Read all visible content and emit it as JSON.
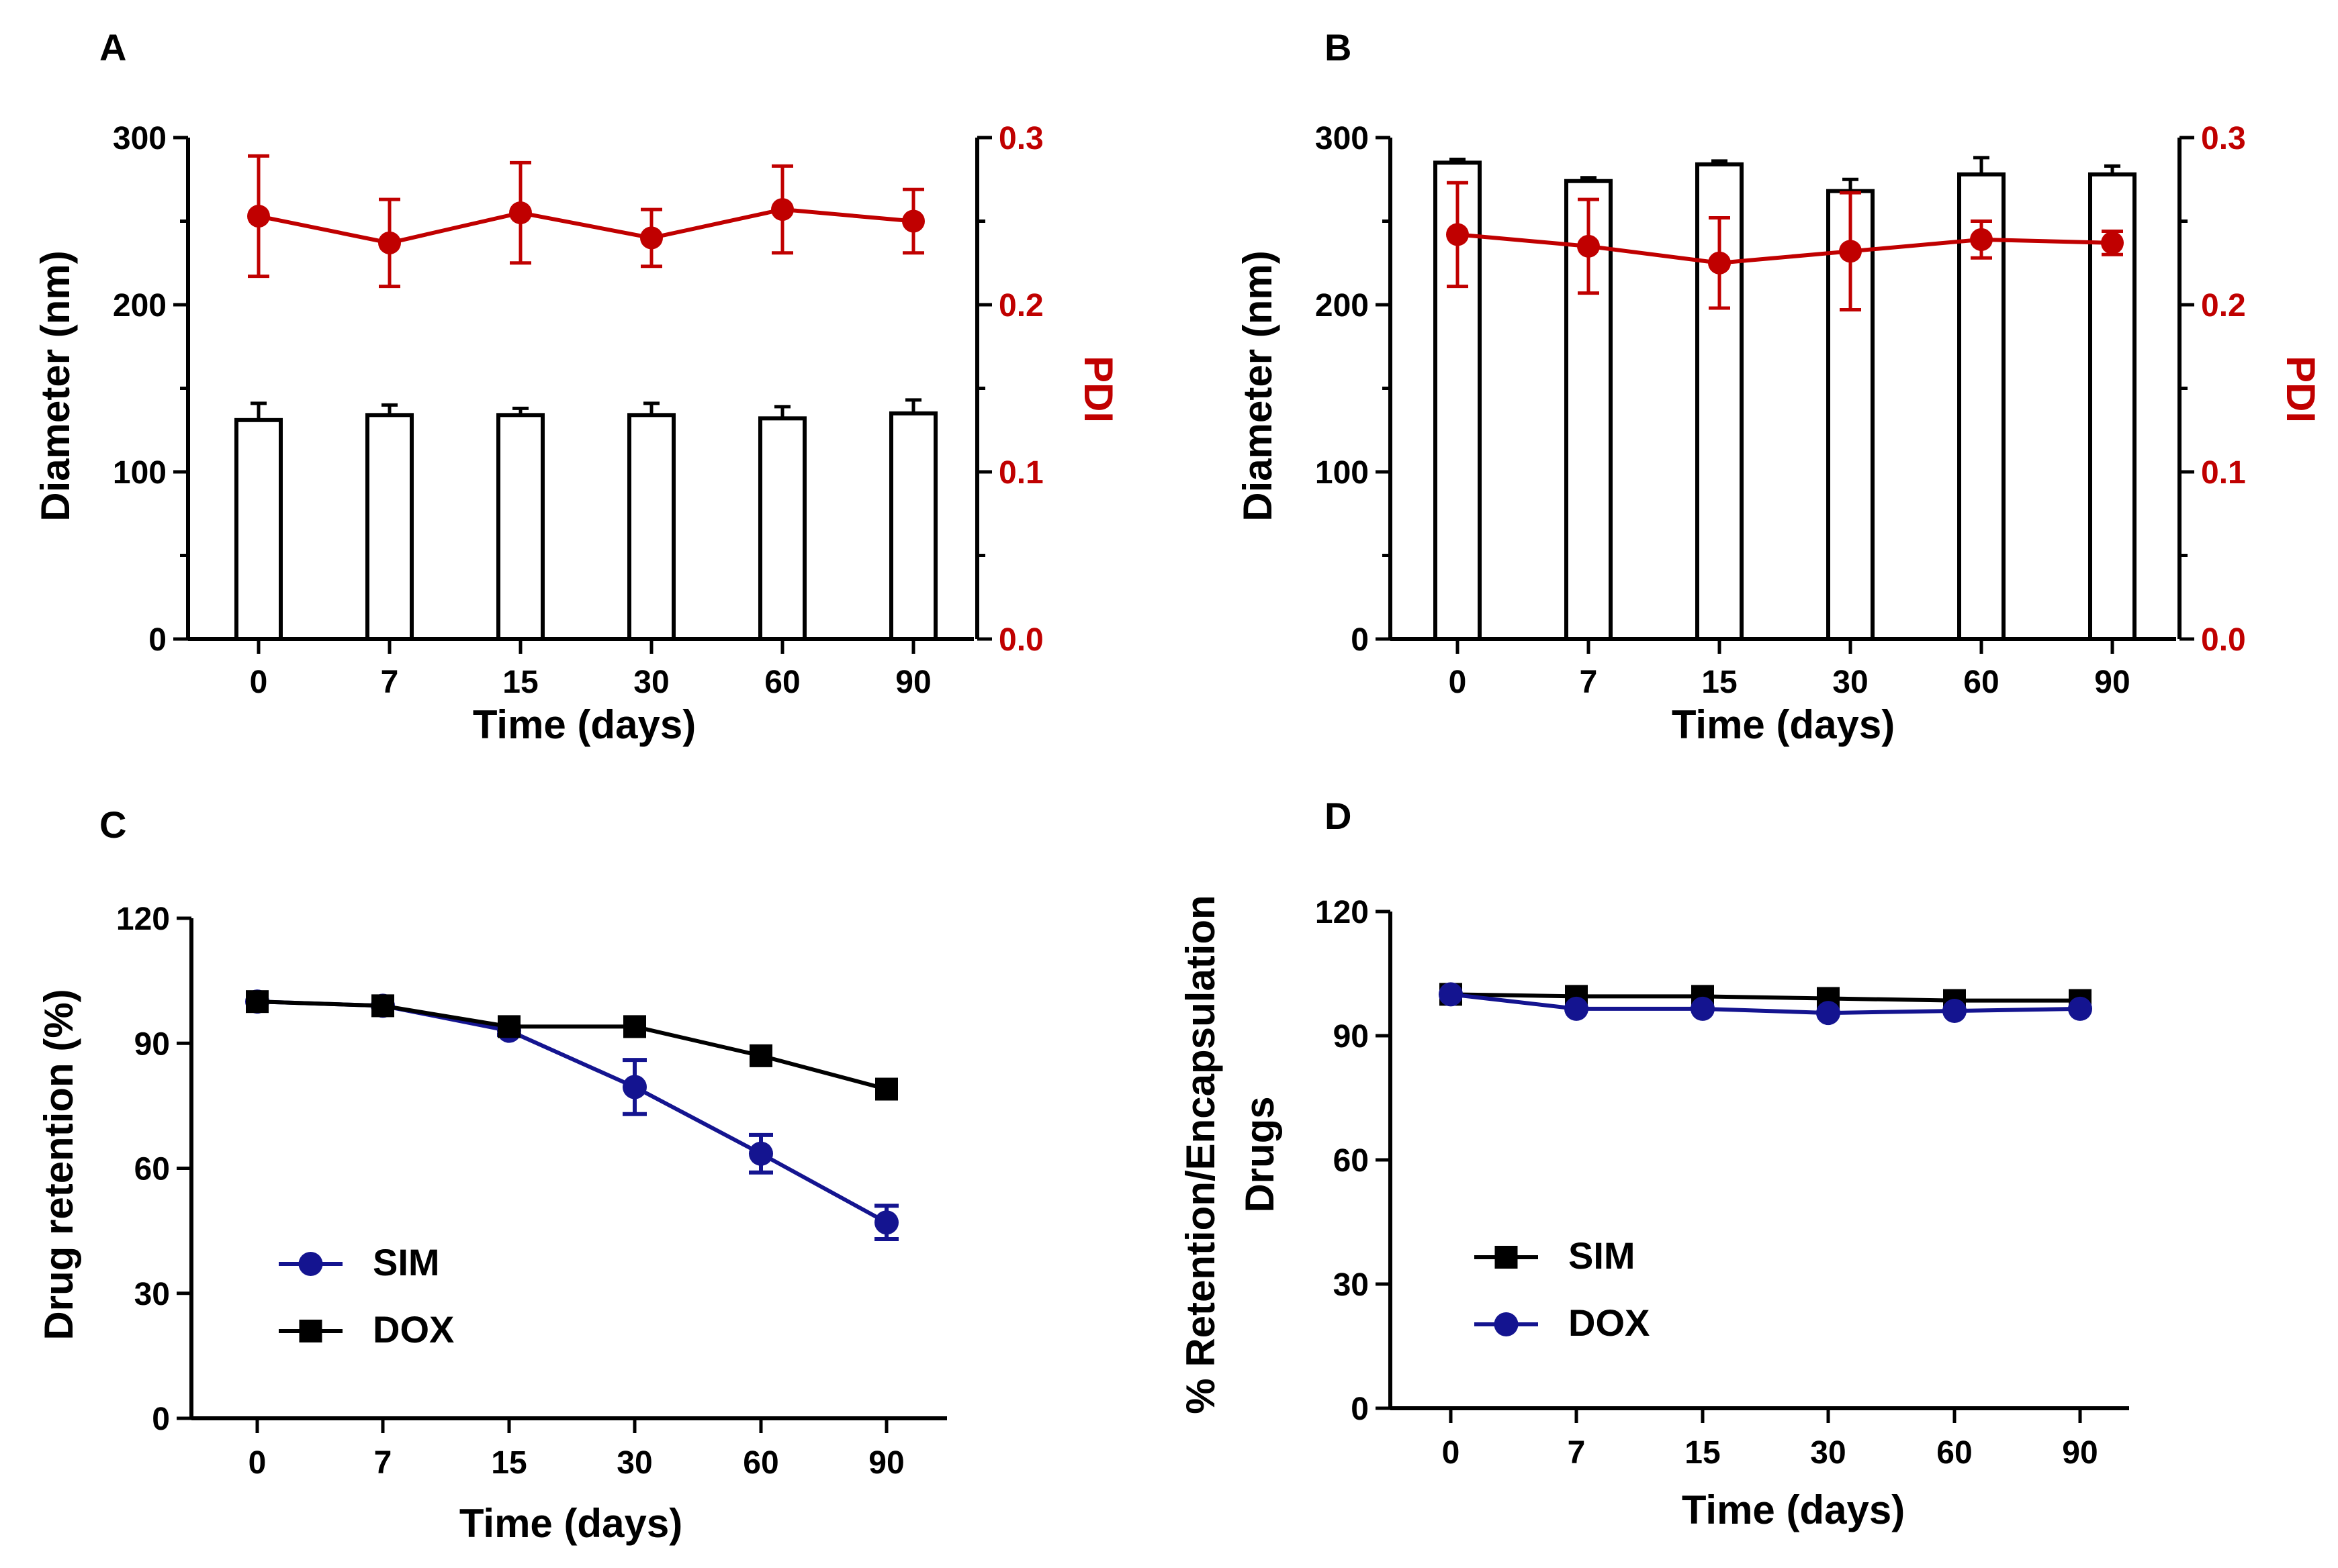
{
  "figure": {
    "colors": {
      "axis": "#000000",
      "pdi": "#c00000",
      "sim_c": "#141490",
      "dox_d": "#141490"
    }
  },
  "chart_data": [
    {
      "panel": "A",
      "type": "bar",
      "categories": [
        "0",
        "7",
        "15",
        "30",
        "60",
        "90"
      ],
      "xlabel": "Time (days)",
      "ylabel": "Diameter (nm)",
      "ylim": [
        0,
        300
      ],
      "yticks": [
        "0",
        "100",
        "200",
        "300"
      ],
      "y2label": "PDI",
      "y2lim": [
        0,
        0.3
      ],
      "y2ticks": [
        "0.0",
        "0.1",
        "0.2",
        "0.3"
      ],
      "series": [
        {
          "name": "Diameter",
          "kind": "bar",
          "axis": "left",
          "values": [
            131,
            134,
            134,
            134,
            132,
            135
          ],
          "errors": [
            10,
            6,
            4,
            7,
            7,
            8
          ]
        },
        {
          "name": "PDI",
          "kind": "line",
          "axis": "right",
          "values": [
            0.253,
            0.237,
            0.255,
            0.24,
            0.257,
            0.25
          ],
          "errors": [
            0.036,
            0.026,
            0.03,
            0.017,
            0.026,
            0.019
          ]
        }
      ]
    },
    {
      "panel": "B",
      "type": "bar",
      "categories": [
        "0",
        "7",
        "15",
        "30",
        "60",
        "90"
      ],
      "xlabel": "Time (days)",
      "ylabel": "Diameter (nm)",
      "ylim": [
        0,
        300
      ],
      "yticks": [
        "0",
        "100",
        "200",
        "300"
      ],
      "y2label": "PDI",
      "y2lim": [
        0,
        0.3
      ],
      "y2ticks": [
        "0.0",
        "0.1",
        "0.2",
        "0.3"
      ],
      "series": [
        {
          "name": "Diameter",
          "kind": "bar",
          "axis": "left",
          "values": [
            285,
            274,
            284,
            268,
            278,
            278
          ],
          "errors": [
            2,
            2,
            2,
            7,
            10,
            5
          ]
        },
        {
          "name": "PDI",
          "kind": "line",
          "axis": "right",
          "values": [
            0.242,
            0.235,
            0.225,
            0.232,
            0.239,
            0.237
          ],
          "errors": [
            0.031,
            0.028,
            0.027,
            0.035,
            0.011,
            0.007
          ]
        }
      ]
    },
    {
      "panel": "C",
      "type": "line",
      "categories": [
        "0",
        "7",
        "15",
        "30",
        "60",
        "90"
      ],
      "xlabel": "Time (days)",
      "ylabel": "Drug retention (%)",
      "ylim": [
        0,
        120
      ],
      "yticks": [
        "0",
        "30",
        "60",
        "90",
        "120"
      ],
      "legend": "bottom-left",
      "series": [
        {
          "name": "SIM",
          "marker": "circle",
          "color": "#141490",
          "values": [
            100,
            99,
            93,
            79.5,
            63.5,
            47
          ],
          "errors": [
            0,
            0,
            1,
            6.5,
            4.5,
            4
          ]
        },
        {
          "name": "DOX",
          "marker": "square",
          "color": "#000000",
          "values": [
            100,
            99,
            94,
            94,
            87,
            79
          ],
          "errors": [
            0,
            0,
            0,
            0,
            0,
            0
          ]
        }
      ]
    },
    {
      "panel": "D",
      "type": "line",
      "categories": [
        "0",
        "7",
        "15",
        "30",
        "60",
        "90"
      ],
      "xlabel": "Time (days)",
      "ylabel": "% Retention/Encapsulation",
      "ylabel2": "Drugs",
      "ylim": [
        0,
        120
      ],
      "yticks": [
        "0",
        "30",
        "60",
        "90",
        "120"
      ],
      "legend": "bottom-left",
      "series": [
        {
          "name": "SIM",
          "marker": "square",
          "color": "#000000",
          "values": [
            100,
            99.5,
            99.5,
            99,
            98.5,
            98.5
          ],
          "errors": [
            0,
            0,
            0,
            0,
            0,
            0
          ]
        },
        {
          "name": "DOX",
          "marker": "circle",
          "color": "#141490",
          "values": [
            100,
            96.5,
            96.5,
            95.5,
            96,
            96.5
          ],
          "errors": [
            0,
            0,
            0,
            0,
            0,
            0
          ]
        }
      ]
    }
  ]
}
